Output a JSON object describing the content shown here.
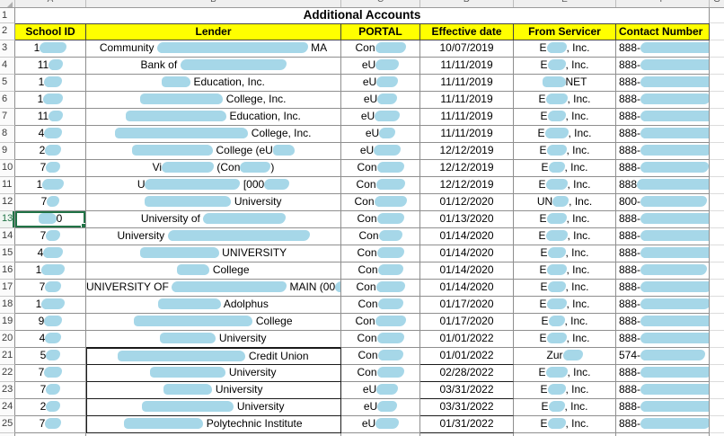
{
  "title": "Additional Accounts",
  "gutter": {
    "title_row": "1",
    "header_row": "2"
  },
  "column_letters": [
    "A",
    "B",
    "C",
    "D",
    "E",
    "F",
    "G"
  ],
  "columns": [
    "School ID",
    "Lender",
    "PORTAL",
    "Effective date",
    "From Servicer",
    "Contact Number"
  ],
  "colors": {
    "header_bg": "#FFFF00",
    "redaction_blue": "#a6d7e8",
    "selection_green": "#217346",
    "grid": "#8f8f8f"
  },
  "selection": {
    "selected_row": 13,
    "selected_column": "A"
  },
  "rows": [
    {
      "n": 3,
      "school": [
        {
          "t": "1"
        },
        {
          "r": 30
        }
      ],
      "lender": [
        {
          "t": "Community "
        },
        {
          "r": 168
        },
        {
          "t": " MA"
        }
      ],
      "portal": [
        {
          "t": "Con"
        },
        {
          "r": 34
        }
      ],
      "date": [
        {
          "t": "10/07/2019"
        }
      ],
      "servicer": [
        {
          "t": "E"
        },
        {
          "r": 22
        },
        {
          "t": ", Inc."
        }
      ],
      "contact": [
        {
          "t": "888-"
        },
        {
          "r": 82
        }
      ]
    },
    {
      "n": 4,
      "school": [
        {
          "t": "11"
        },
        {
          "r": 16
        }
      ],
      "lender": [
        {
          "t": "Bank of "
        },
        {
          "r": 118
        }
      ],
      "portal": [
        {
          "t": "eU"
        },
        {
          "r": 26
        }
      ],
      "date": [
        {
          "t": "11/11/2019"
        }
      ],
      "servicer": [
        {
          "t": "E"
        },
        {
          "r": 20
        },
        {
          "t": ", Inc."
        }
      ],
      "contact": [
        {
          "t": "888-"
        },
        {
          "r": 86
        }
      ]
    },
    {
      "n": 5,
      "school": [
        {
          "t": "1"
        },
        {
          "r": 20
        }
      ],
      "lender": [
        {
          "r": 32
        },
        {
          "t": " Education, Inc."
        }
      ],
      "portal": [
        {
          "t": "eU"
        },
        {
          "r": 24
        }
      ],
      "date": [
        {
          "t": "11/11/2019"
        }
      ],
      "servicer": [
        {
          "r": 26
        },
        {
          "t": "NET"
        }
      ],
      "contact": [
        {
          "t": "888-"
        },
        {
          "r": 92
        }
      ]
    },
    {
      "n": 6,
      "school": [
        {
          "t": "1"
        },
        {
          "r": 22
        }
      ],
      "lender": [
        {
          "r": 92
        },
        {
          "t": " College, Inc."
        }
      ],
      "portal": [
        {
          "t": "eU"
        },
        {
          "r": 22
        }
      ],
      "date": [
        {
          "t": "11/11/2019"
        }
      ],
      "servicer": [
        {
          "t": "E"
        },
        {
          "r": 24
        },
        {
          "t": ", Inc."
        }
      ],
      "contact": [
        {
          "t": "888-"
        },
        {
          "r": 78
        }
      ]
    },
    {
      "n": 7,
      "school": [
        {
          "t": "11"
        },
        {
          "r": 16
        }
      ],
      "lender": [
        {
          "r": 112
        },
        {
          "t": " Education, Inc."
        }
      ],
      "portal": [
        {
          "t": "eU"
        },
        {
          "r": 28
        }
      ],
      "date": [
        {
          "t": "11/11/2019"
        }
      ],
      "servicer": [
        {
          "t": "E"
        },
        {
          "r": 20
        },
        {
          "t": ", Inc."
        }
      ],
      "contact": [
        {
          "t": "888-"
        },
        {
          "r": 84
        }
      ]
    },
    {
      "n": 8,
      "school": [
        {
          "t": "4"
        },
        {
          "r": 20
        }
      ],
      "lender": [
        {
          "r": 148
        },
        {
          "t": " College, Inc."
        }
      ],
      "portal": [
        {
          "t": "eU"
        },
        {
          "r": 18
        }
      ],
      "date": [
        {
          "t": "11/11/2019"
        }
      ],
      "servicer": [
        {
          "t": "E"
        },
        {
          "r": 26
        },
        {
          "t": ", Inc."
        }
      ],
      "contact": [
        {
          "t": "888-"
        },
        {
          "r": 88
        }
      ]
    },
    {
      "n": 9,
      "school": [
        {
          "t": "2"
        },
        {
          "r": 18
        }
      ],
      "lender": [
        {
          "r": 90
        },
        {
          "t": " College  (eU"
        },
        {
          "r": 24
        }
      ],
      "portal": [
        {
          "t": "eU"
        },
        {
          "r": 30
        }
      ],
      "date": [
        {
          "t": "12/12/2019"
        }
      ],
      "servicer": [
        {
          "t": "E"
        },
        {
          "r": 22
        },
        {
          "t": ", Inc."
        }
      ],
      "contact": [
        {
          "t": "888-"
        },
        {
          "r": 80
        }
      ]
    },
    {
      "n": 10,
      "school": [
        {
          "t": "7"
        },
        {
          "r": 16
        }
      ],
      "lender": [
        {
          "t": "Vi"
        },
        {
          "r": 58
        },
        {
          "t": " (Con"
        },
        {
          "r": 34
        },
        {
          "t": ")"
        }
      ],
      "portal": [
        {
          "t": "Con"
        },
        {
          "r": 30
        }
      ],
      "date": [
        {
          "t": "12/12/2019"
        }
      ],
      "servicer": [
        {
          "t": "E"
        },
        {
          "r": 18
        },
        {
          "t": ", Inc."
        }
      ],
      "contact": [
        {
          "t": "888-"
        },
        {
          "r": 76
        }
      ]
    },
    {
      "n": 11,
      "school": [
        {
          "t": "1"
        },
        {
          "r": 24
        }
      ],
      "lender": [
        {
          "t": "U"
        },
        {
          "r": 106
        },
        {
          "t": " [000"
        },
        {
          "r": 28
        }
      ],
      "portal": [
        {
          "t": "Con"
        },
        {
          "r": 32
        }
      ],
      "date": [
        {
          "t": "12/12/2019"
        }
      ],
      "servicer": [
        {
          "t": "E"
        },
        {
          "r": 24
        },
        {
          "t": ", Inc."
        }
      ],
      "contact": [
        {
          "t": "888"
        },
        {
          "r": 90
        }
      ]
    },
    {
      "n": 12,
      "school": [
        {
          "t": "7"
        },
        {
          "r": 14
        }
      ],
      "lender": [
        {
          "r": 96
        },
        {
          "t": " University"
        }
      ],
      "portal": [
        {
          "t": "Con"
        },
        {
          "r": 36
        }
      ],
      "date": [
        {
          "t": "01/12/2020"
        }
      ],
      "servicer": [
        {
          "t": "UN"
        },
        {
          "r": 18
        },
        {
          "t": ", Inc."
        }
      ],
      "contact": [
        {
          "t": "800-"
        },
        {
          "r": 74
        }
      ]
    },
    {
      "n": 13,
      "school": [
        {
          "r": 20
        },
        {
          "t": "0"
        }
      ],
      "lender": [
        {
          "t": "University of "
        },
        {
          "r": 92
        }
      ],
      "portal": [
        {
          "t": "Con"
        },
        {
          "r": 30
        }
      ],
      "date": [
        {
          "t": "01/13/2020"
        }
      ],
      "servicer": [
        {
          "t": "E"
        },
        {
          "r": 22
        },
        {
          "t": ", Inc."
        }
      ],
      "contact": [
        {
          "t": "888-"
        },
        {
          "r": 86
        }
      ]
    },
    {
      "n": 14,
      "school": [
        {
          "t": "7"
        },
        {
          "r": 16
        }
      ],
      "lender": [
        {
          "t": "University "
        },
        {
          "r": 158
        }
      ],
      "portal": [
        {
          "t": "Con"
        },
        {
          "r": 26
        }
      ],
      "date": [
        {
          "t": "01/14/2020"
        }
      ],
      "servicer": [
        {
          "t": "E"
        },
        {
          "r": 24
        },
        {
          "t": ", Inc."
        }
      ],
      "contact": [
        {
          "t": "888-"
        },
        {
          "r": 84
        }
      ]
    },
    {
      "n": 15,
      "school": [
        {
          "t": "4"
        },
        {
          "r": 22
        }
      ],
      "lender": [
        {
          "r": 88
        },
        {
          "t": " UNIVERSITY"
        }
      ],
      "portal": [
        {
          "t": "Con"
        },
        {
          "r": 30
        }
      ],
      "date": [
        {
          "t": "01/14/2020"
        }
      ],
      "servicer": [
        {
          "t": "E"
        },
        {
          "r": 20
        },
        {
          "t": ", Inc."
        }
      ],
      "contact": [
        {
          "t": "888-"
        },
        {
          "r": 88
        }
      ]
    },
    {
      "n": 16,
      "school": [
        {
          "t": "1"
        },
        {
          "r": 26
        }
      ],
      "lender": [
        {
          "r": 36
        },
        {
          "t": " College"
        }
      ],
      "portal": [
        {
          "t": "Con"
        },
        {
          "r": 28
        }
      ],
      "date": [
        {
          "t": "01/14/2020"
        }
      ],
      "servicer": [
        {
          "t": "E"
        },
        {
          "r": 22
        },
        {
          "t": ", Inc."
        }
      ],
      "contact": [
        {
          "t": "888-"
        },
        {
          "r": 74
        }
      ]
    },
    {
      "n": 17,
      "school": [
        {
          "t": "7"
        },
        {
          "r": 18
        }
      ],
      "lender": [
        {
          "t": "UNIVERSITY OF "
        },
        {
          "r": 128
        },
        {
          "t": " MAIN (00"
        },
        {
          "r": 40
        },
        {
          "t": ")"
        }
      ],
      "portal": [
        {
          "t": "Con"
        },
        {
          "r": 32
        }
      ],
      "date": [
        {
          "t": "01/14/2020"
        }
      ],
      "servicer": [
        {
          "t": "E"
        },
        {
          "r": 20
        },
        {
          "t": ", Inc."
        }
      ],
      "contact": [
        {
          "t": "888-"
        },
        {
          "r": 80
        }
      ]
    },
    {
      "n": 18,
      "school": [
        {
          "t": "1"
        },
        {
          "r": 26
        }
      ],
      "lender": [
        {
          "r": 70
        },
        {
          "t": " Adolphus"
        }
      ],
      "portal": [
        {
          "t": "Con"
        },
        {
          "r": 28
        }
      ],
      "date": [
        {
          "t": "01/17/2020"
        }
      ],
      "servicer": [
        {
          "t": "E"
        },
        {
          "r": 22
        },
        {
          "t": ", Inc."
        }
      ],
      "contact": [
        {
          "t": "888-"
        },
        {
          "r": 78
        }
      ]
    },
    {
      "n": 19,
      "school": [
        {
          "t": "9"
        },
        {
          "r": 20
        }
      ],
      "lender": [
        {
          "r": 132
        },
        {
          "t": " College"
        }
      ],
      "portal": [
        {
          "t": "Con"
        },
        {
          "r": 34
        }
      ],
      "date": [
        {
          "t": "01/17/2020"
        }
      ],
      "servicer": [
        {
          "t": "E"
        },
        {
          "r": 18
        },
        {
          "t": ", Inc."
        }
      ],
      "contact": [
        {
          "t": "888-"
        },
        {
          "r": 88
        }
      ]
    },
    {
      "n": 20,
      "school": [
        {
          "t": "4"
        },
        {
          "r": 18
        }
      ],
      "lender": [
        {
          "r": 62
        },
        {
          "t": " University"
        }
      ],
      "portal": [
        {
          "t": "Con"
        },
        {
          "r": 30
        }
      ],
      "date": [
        {
          "t": "01/01/2022"
        }
      ],
      "servicer": [
        {
          "t": "E"
        },
        {
          "r": 22
        },
        {
          "t": ", Inc."
        }
      ],
      "contact": [
        {
          "t": "888-"
        },
        {
          "r": 84
        }
      ]
    },
    {
      "n": 21,
      "school": [
        {
          "t": "5"
        },
        {
          "r": 16
        }
      ],
      "lender": [
        {
          "r": 142
        },
        {
          "t": " Credit Union"
        }
      ],
      "portal": [
        {
          "t": "Con"
        },
        {
          "r": 28
        }
      ],
      "date": [
        {
          "t": "01/01/2022"
        }
      ],
      "servicer": [
        {
          "t": "Zur"
        },
        {
          "r": 22
        }
      ],
      "contact": [
        {
          "t": "574-"
        },
        {
          "r": 72
        }
      ]
    },
    {
      "n": 22,
      "school": [
        {
          "t": "7"
        },
        {
          "r": 20
        }
      ],
      "lender": [
        {
          "r": 84
        },
        {
          "t": " University"
        }
      ],
      "portal": [
        {
          "t": "Con"
        },
        {
          "r": 30
        }
      ],
      "date": [
        {
          "t": "02/28/2022"
        }
      ],
      "servicer": [
        {
          "t": "E"
        },
        {
          "r": 24
        },
        {
          "t": ", Inc."
        }
      ],
      "contact": [
        {
          "t": "888-"
        },
        {
          "r": 80
        }
      ]
    },
    {
      "n": 23,
      "school": [
        {
          "t": "7"
        },
        {
          "r": 16
        }
      ],
      "lender": [
        {
          "r": 54
        },
        {
          "t": " University"
        }
      ],
      "portal": [
        {
          "t": "eU"
        },
        {
          "r": 24
        }
      ],
      "date": [
        {
          "t": "03/31/2022"
        }
      ],
      "servicer": [
        {
          "t": "E"
        },
        {
          "r": 20
        },
        {
          "t": ", Inc."
        }
      ],
      "contact": [
        {
          "t": "888-"
        },
        {
          "r": 86
        }
      ]
    },
    {
      "n": 24,
      "school": [
        {
          "t": "2"
        },
        {
          "r": 16
        }
      ],
      "lender": [
        {
          "r": 102
        },
        {
          "t": " University"
        }
      ],
      "portal": [
        {
          "t": "eU"
        },
        {
          "r": 22
        }
      ],
      "date": [
        {
          "t": "03/31/2022"
        }
      ],
      "servicer": [
        {
          "t": "E"
        },
        {
          "r": 18
        },
        {
          "t": ", Inc."
        }
      ],
      "contact": [
        {
          "t": "888-"
        },
        {
          "r": 82
        }
      ]
    },
    {
      "n": 25,
      "school": [
        {
          "t": "7"
        },
        {
          "r": 18
        }
      ],
      "lender": [
        {
          "r": 88
        },
        {
          "t": " Polytechnic Institute"
        }
      ],
      "portal": [
        {
          "t": "eU"
        },
        {
          "r": 26
        }
      ],
      "date": [
        {
          "t": "01/31/2022"
        }
      ],
      "servicer": [
        {
          "t": "E"
        },
        {
          "r": 20
        },
        {
          "t": ", Inc."
        }
      ],
      "contact": [
        {
          "t": "888-"
        },
        {
          "r": 78
        }
      ]
    }
  ]
}
